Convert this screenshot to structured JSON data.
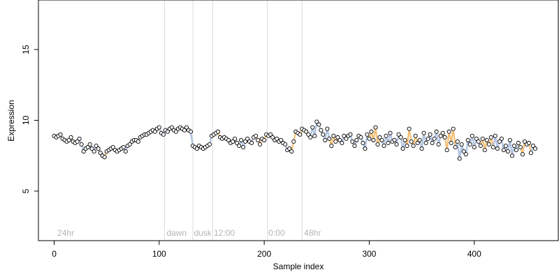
{
  "chart_data": {
    "type": "scatter",
    "title": "",
    "xlabel": "Sample index",
    "ylabel": "Expression",
    "xlim": [
      -15,
      480
    ],
    "ylim": [
      1.5,
      18.5
    ],
    "x_ticks": [
      0,
      100,
      200,
      300,
      400
    ],
    "y_ticks": [
      5,
      10,
      15
    ],
    "grid": false,
    "legend": "none",
    "colors": {
      "point_fill": "#ffffff",
      "point_stroke": "#000000",
      "line_a": "#9fb6dd",
      "line_b": "#f0b35c",
      "vline": "#dcdcdc",
      "annotation": "#b4b4b4"
    },
    "vertical_lines": [
      105,
      132,
      151,
      203,
      236
    ],
    "annotations": [
      {
        "x": 3,
        "text": "24hr"
      },
      {
        "x": 107,
        "text": "dawn"
      },
      {
        "x": 133,
        "text": "dusk"
      },
      {
        "x": 152,
        "text": "12:00"
      },
      {
        "x": 204,
        "text": "0:00"
      },
      {
        "x": 238,
        "text": "48hr"
      }
    ],
    "series": [
      {
        "values": [
          8.9,
          8.8,
          8.9,
          9,
          8.7,
          8.6,
          8.5,
          8.6,
          8.8,
          8.5,
          8.4,
          8.5,
          8.7,
          8.3,
          7.8,
          8,
          8.1,
          8.3,
          8,
          7.8,
          8.2,
          8,
          7.7,
          7.5,
          7.4,
          7.8,
          7.9,
          8,
          8.1,
          7.9,
          7.8,
          7.9,
          8,
          8.1,
          7.8,
          8.2,
          8.3,
          8.5,
          8.6,
          8.6,
          8.5,
          8.8,
          8.9,
          9,
          9,
          9.1,
          9.2,
          9.3,
          9.2,
          9.4,
          9.5,
          9.1,
          9,
          9.3,
          9.2,
          9.4,
          9.5,
          9.3,
          9.2,
          9.4,
          9.5,
          9.4,
          9.3,
          9.5,
          9.3,
          9.2,
          8.2,
          8.1,
          8,
          8.2,
          8.1,
          8,
          8.1,
          8.2,
          8.3,
          8.9,
          9,
          9.1,
          9.2,
          8.8,
          8.7,
          8.8,
          8.7,
          8.6,
          8.4,
          8.5,
          8.7,
          8.4,
          8.2,
          8.6,
          8.1,
          8.5,
          8.7,
          8.5,
          8.4,
          8.8,
          8.9,
          8.6,
          8.3,
          8.7,
          8.6,
          9,
          8.9,
          9,
          8.8,
          8.6,
          8.7,
          8.5,
          8.6,
          8.4,
          8.3,
          7.9,
          8,
          7.8,
          8.5,
          9.2,
          9.1,
          9,
          9.4,
          9.3,
          9.2,
          9,
          8.8,
          9.5,
          8.9,
          9.9,
          9.7,
          9.3,
          9,
          8.6,
          9.4,
          8.7,
          8.2,
          8.9,
          8.5,
          8.8,
          8.6,
          8.4,
          8.9,
          8.7,
          8.9,
          9,
          8.5,
          8.2,
          8.6,
          8.9,
          8.8,
          8.4,
          8,
          9,
          8.7,
          9.2,
          8.6,
          9.5,
          8.3,
          8.8,
          8.6,
          8.2,
          8.9,
          8.4,
          9.1,
          8.5,
          8.6,
          8.3,
          9,
          8.8,
          8,
          8.6,
          8.2,
          9.4,
          8.5,
          8.2,
          8.9,
          8.4,
          8.6,
          8,
          9.1,
          8.4,
          8.7,
          9,
          8.4,
          8.7,
          9.2,
          8.3,
          8.9,
          9.1,
          8.8,
          7.9,
          9.2,
          8.4,
          9.4,
          8.1,
          8.5,
          7.3,
          8.3,
          7.8,
          7.6,
          8.6,
          8.3,
          8.9,
          8.1,
          8.7,
          8.5,
          8.2,
          8.7,
          7.9,
          8.6,
          8.3,
          8.8,
          8.1,
          8.9,
          8,
          8.5,
          8.7,
          7.9,
          8.2,
          7.8,
          8.6,
          7.5,
          8.2,
          7.9,
          8.4,
          8.1,
          7.6,
          8.5,
          8.3,
          8.4,
          7.7,
          8.2,
          8
        ],
        "x_start": 0,
        "x_step": 2
      }
    ]
  }
}
